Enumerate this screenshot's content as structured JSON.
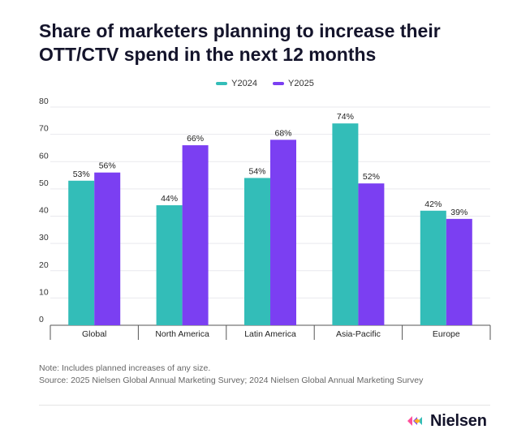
{
  "colors": {
    "y2024": "#33bdb8",
    "y2025": "#7b3ff2",
    "text": "#14142b",
    "grid": "#e9e9ee",
    "axis": "#555555"
  },
  "brand": {
    "name": "Nielsen"
  },
  "chart_data": {
    "type": "bar",
    "title": "Share of marketers planning to increase their OTT/CTV spend in the next 12 months",
    "categories": [
      "Global",
      "North America",
      "Latin America",
      "Asia-Pacific",
      "Europe"
    ],
    "series": [
      {
        "name": "Y2024",
        "values": [
          53,
          44,
          54,
          74,
          42
        ]
      },
      {
        "name": "Y2025",
        "values": [
          56,
          66,
          68,
          52,
          39
        ]
      }
    ],
    "value_suffix": "%",
    "ylim": [
      0,
      80
    ],
    "yticks": [
      0,
      10,
      20,
      30,
      40,
      50,
      60,
      70,
      80
    ],
    "xlabel": "",
    "ylabel": "",
    "grid": true,
    "legend_position": "top-center"
  },
  "notes": {
    "note": "Note: Includes planned increases of any size.",
    "source": "Source: 2025 Nielsen Global Annual Marketing Survey; 2024 Nielsen Global Annual Marketing Survey"
  }
}
